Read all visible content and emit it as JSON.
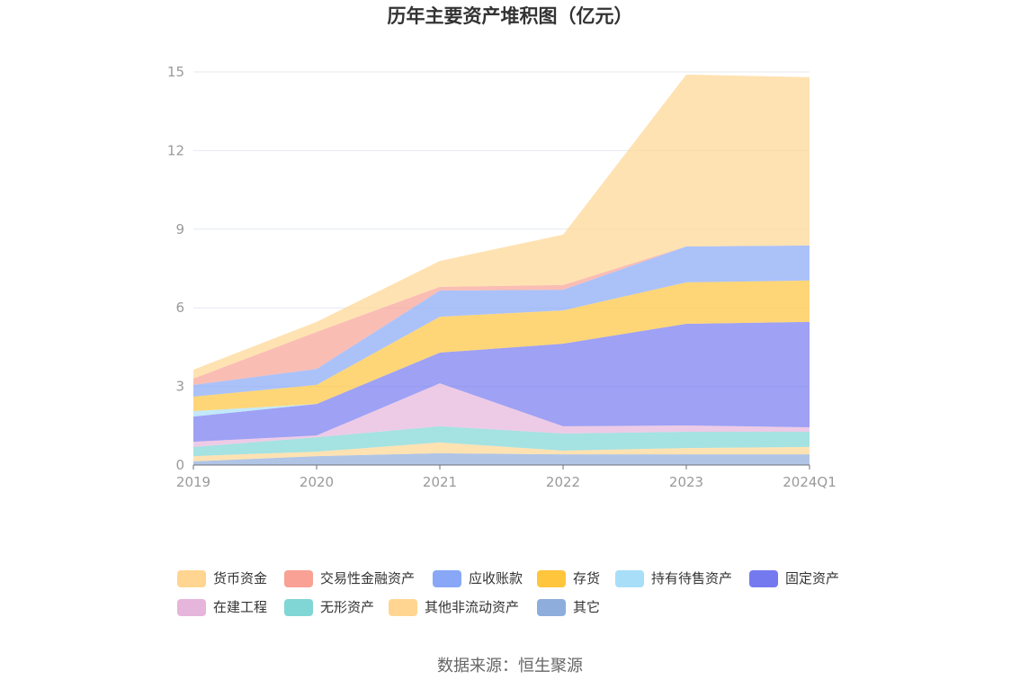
{
  "chart_data": {
    "type": "area",
    "stacked": true,
    "title": "历年主要资产堆积图（亿元）",
    "categories": [
      "2019",
      "2020",
      "2021",
      "2022",
      "2023",
      "2024Q1"
    ],
    "ylim": [
      0,
      15
    ],
    "yticks": [
      0,
      3,
      6,
      9,
      12,
      15
    ],
    "series": [
      {
        "name": "货币资金",
        "color": "#FFD591",
        "values": [
          0.34,
          0.38,
          0.99,
          1.92,
          6.56,
          6.42
        ]
      },
      {
        "name": "交易性金融资产",
        "color": "#F8A194",
        "values": [
          0.24,
          1.41,
          0.14,
          0.18,
          0.0,
          0.0
        ]
      },
      {
        "name": "应收账款",
        "color": "#88A8F7",
        "values": [
          0.45,
          0.61,
          1.0,
          0.79,
          1.37,
          1.34
        ]
      },
      {
        "name": "存货",
        "color": "#FFC53D",
        "values": [
          0.55,
          0.73,
          1.37,
          1.27,
          1.58,
          1.58
        ]
      },
      {
        "name": "持有待售资产",
        "color": "#A8DEF8",
        "values": [
          0.21,
          0.0,
          0.0,
          0.0,
          0.0,
          0.0
        ]
      },
      {
        "name": "固定资产",
        "color": "#7579EF",
        "values": [
          0.96,
          1.2,
          1.17,
          3.15,
          3.88,
          4.02
        ]
      },
      {
        "name": "在建工程",
        "color": "#E6B5DB",
        "values": [
          0.2,
          0.07,
          1.64,
          0.28,
          0.24,
          0.17
        ]
      },
      {
        "name": "无形资产",
        "color": "#7FD6D5",
        "values": [
          0.35,
          0.55,
          0.62,
          0.65,
          0.62,
          0.58
        ]
      },
      {
        "name": "其他非流动资产",
        "color": "#FFD591",
        "values": [
          0.2,
          0.17,
          0.41,
          0.14,
          0.24,
          0.28
        ]
      },
      {
        "name": "其它",
        "color": "#8EADDC",
        "values": [
          0.14,
          0.34,
          0.45,
          0.41,
          0.41,
          0.41
        ]
      }
    ]
  },
  "source": "数据来源：恒生聚源"
}
